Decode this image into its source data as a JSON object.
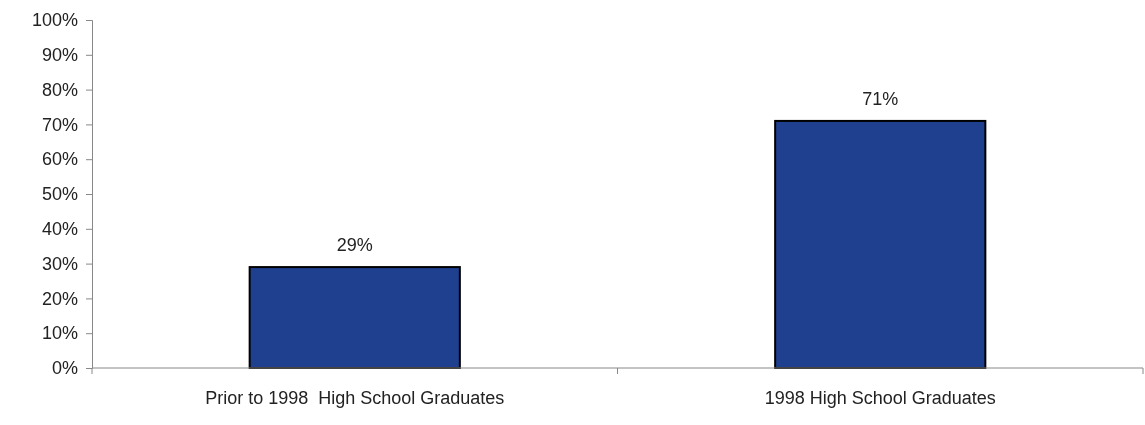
{
  "chart_data": {
    "type": "bar",
    "categories": [
      "Prior to 1998  High School Graduates",
      "1998 High School Graduates"
    ],
    "values": [
      29,
      71
    ],
    "color": "#1f3f8f",
    "value_labels": [
      "29%",
      "71%"
    ],
    "ylim": [
      0,
      100
    ],
    "yticks": [
      {
        "value": 0,
        "label": "0%"
      },
      {
        "value": 10,
        "label": "10%"
      },
      {
        "value": 20,
        "label": "20%"
      },
      {
        "value": 30,
        "label": "30%"
      },
      {
        "value": 40,
        "label": "40%"
      },
      {
        "value": 50,
        "label": "50%"
      },
      {
        "value": 60,
        "label": "60%"
      },
      {
        "value": 70,
        "label": "70%"
      },
      {
        "value": 80,
        "label": "80%"
      },
      {
        "value": 90,
        "label": "90%"
      },
      {
        "value": 100,
        "label": "100%"
      }
    ],
    "grid": false
  }
}
